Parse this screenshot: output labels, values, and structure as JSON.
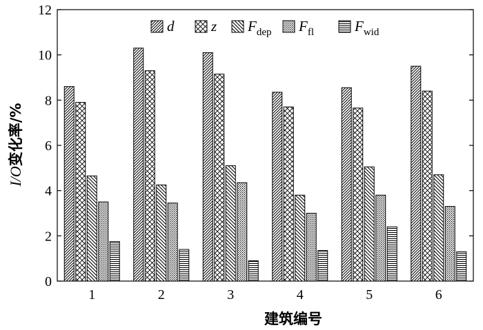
{
  "chart_data": {
    "type": "bar",
    "categories": [
      "1",
      "2",
      "3",
      "4",
      "5",
      "6"
    ],
    "series": [
      {
        "name": "d",
        "legend_main": "d",
        "legend_sub": "",
        "pattern": "diag-right",
        "values": [
          8.6,
          10.3,
          10.1,
          8.35,
          8.55,
          9.5
        ]
      },
      {
        "name": "z",
        "legend_main": "z",
        "legend_sub": "",
        "pattern": "crosshatch",
        "values": [
          7.9,
          9.3,
          9.15,
          7.7,
          7.65,
          8.4
        ]
      },
      {
        "name": "Fdep",
        "legend_main": "F",
        "legend_sub": "dep",
        "pattern": "diag-left",
        "values": [
          4.65,
          4.25,
          5.1,
          3.8,
          5.05,
          4.7
        ]
      },
      {
        "name": "Ffl",
        "legend_main": "F",
        "legend_sub": "fl",
        "pattern": "dots",
        "values": [
          3.5,
          3.45,
          4.35,
          3.0,
          3.8,
          3.3
        ]
      },
      {
        "name": "Fwid",
        "legend_main": "F",
        "legend_sub": "wid",
        "pattern": "horizontal",
        "values": [
          1.75,
          1.4,
          0.9,
          1.35,
          2.4,
          1.3
        ]
      }
    ],
    "xlabel": "建筑编号",
    "ylabel_italic": "I/O",
    "ylabel_rest": "变化率/%",
    "ylim": [
      0,
      12
    ],
    "yticks": [
      0,
      2,
      4,
      6,
      8,
      10,
      12
    ],
    "grid": false,
    "legend_position": "top-center"
  }
}
